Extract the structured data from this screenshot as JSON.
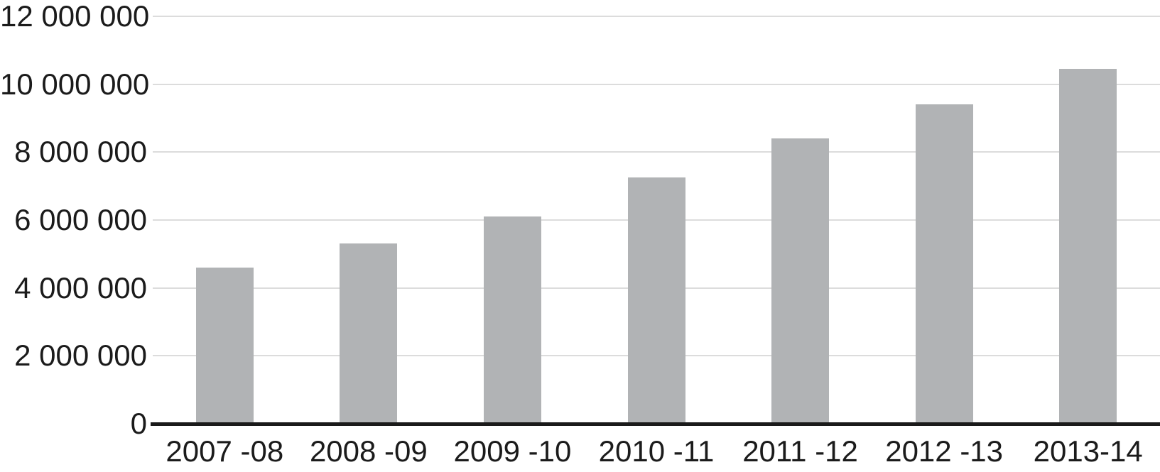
{
  "chart_data": {
    "type": "bar",
    "title": "",
    "categories": [
      "2007 -08",
      "2008 -09",
      "2009 -10",
      "2010 -11",
      "2011 -12",
      "2012 -13",
      "2013-14"
    ],
    "values": [
      4600000,
      5300000,
      6100000,
      7250000,
      8400000,
      9400000,
      10450000
    ],
    "series_name": "",
    "xlabel": "",
    "ylabel": "",
    "ylim": [
      0,
      12000000
    ],
    "y_ticks": [
      {
        "value": 0,
        "label": "0"
      },
      {
        "value": 2000000,
        "label": "2 000 000"
      },
      {
        "value": 4000000,
        "label": "4 000 000"
      },
      {
        "value": 6000000,
        "label": "6 000 000"
      },
      {
        "value": 8000000,
        "label": "8 000 000"
      },
      {
        "value": 10000000,
        "label": "10 000 000"
      },
      {
        "value": 12000000,
        "label": "12 000 000"
      }
    ],
    "grid": "horizontal",
    "legend": "none",
    "colors": {
      "bar_fill": "#b1b3b5",
      "gridline": "#dcdcdc",
      "axis_line": "#1a1a1a",
      "tick_text": "#1b1b1b",
      "background": "#ffffff"
    }
  }
}
